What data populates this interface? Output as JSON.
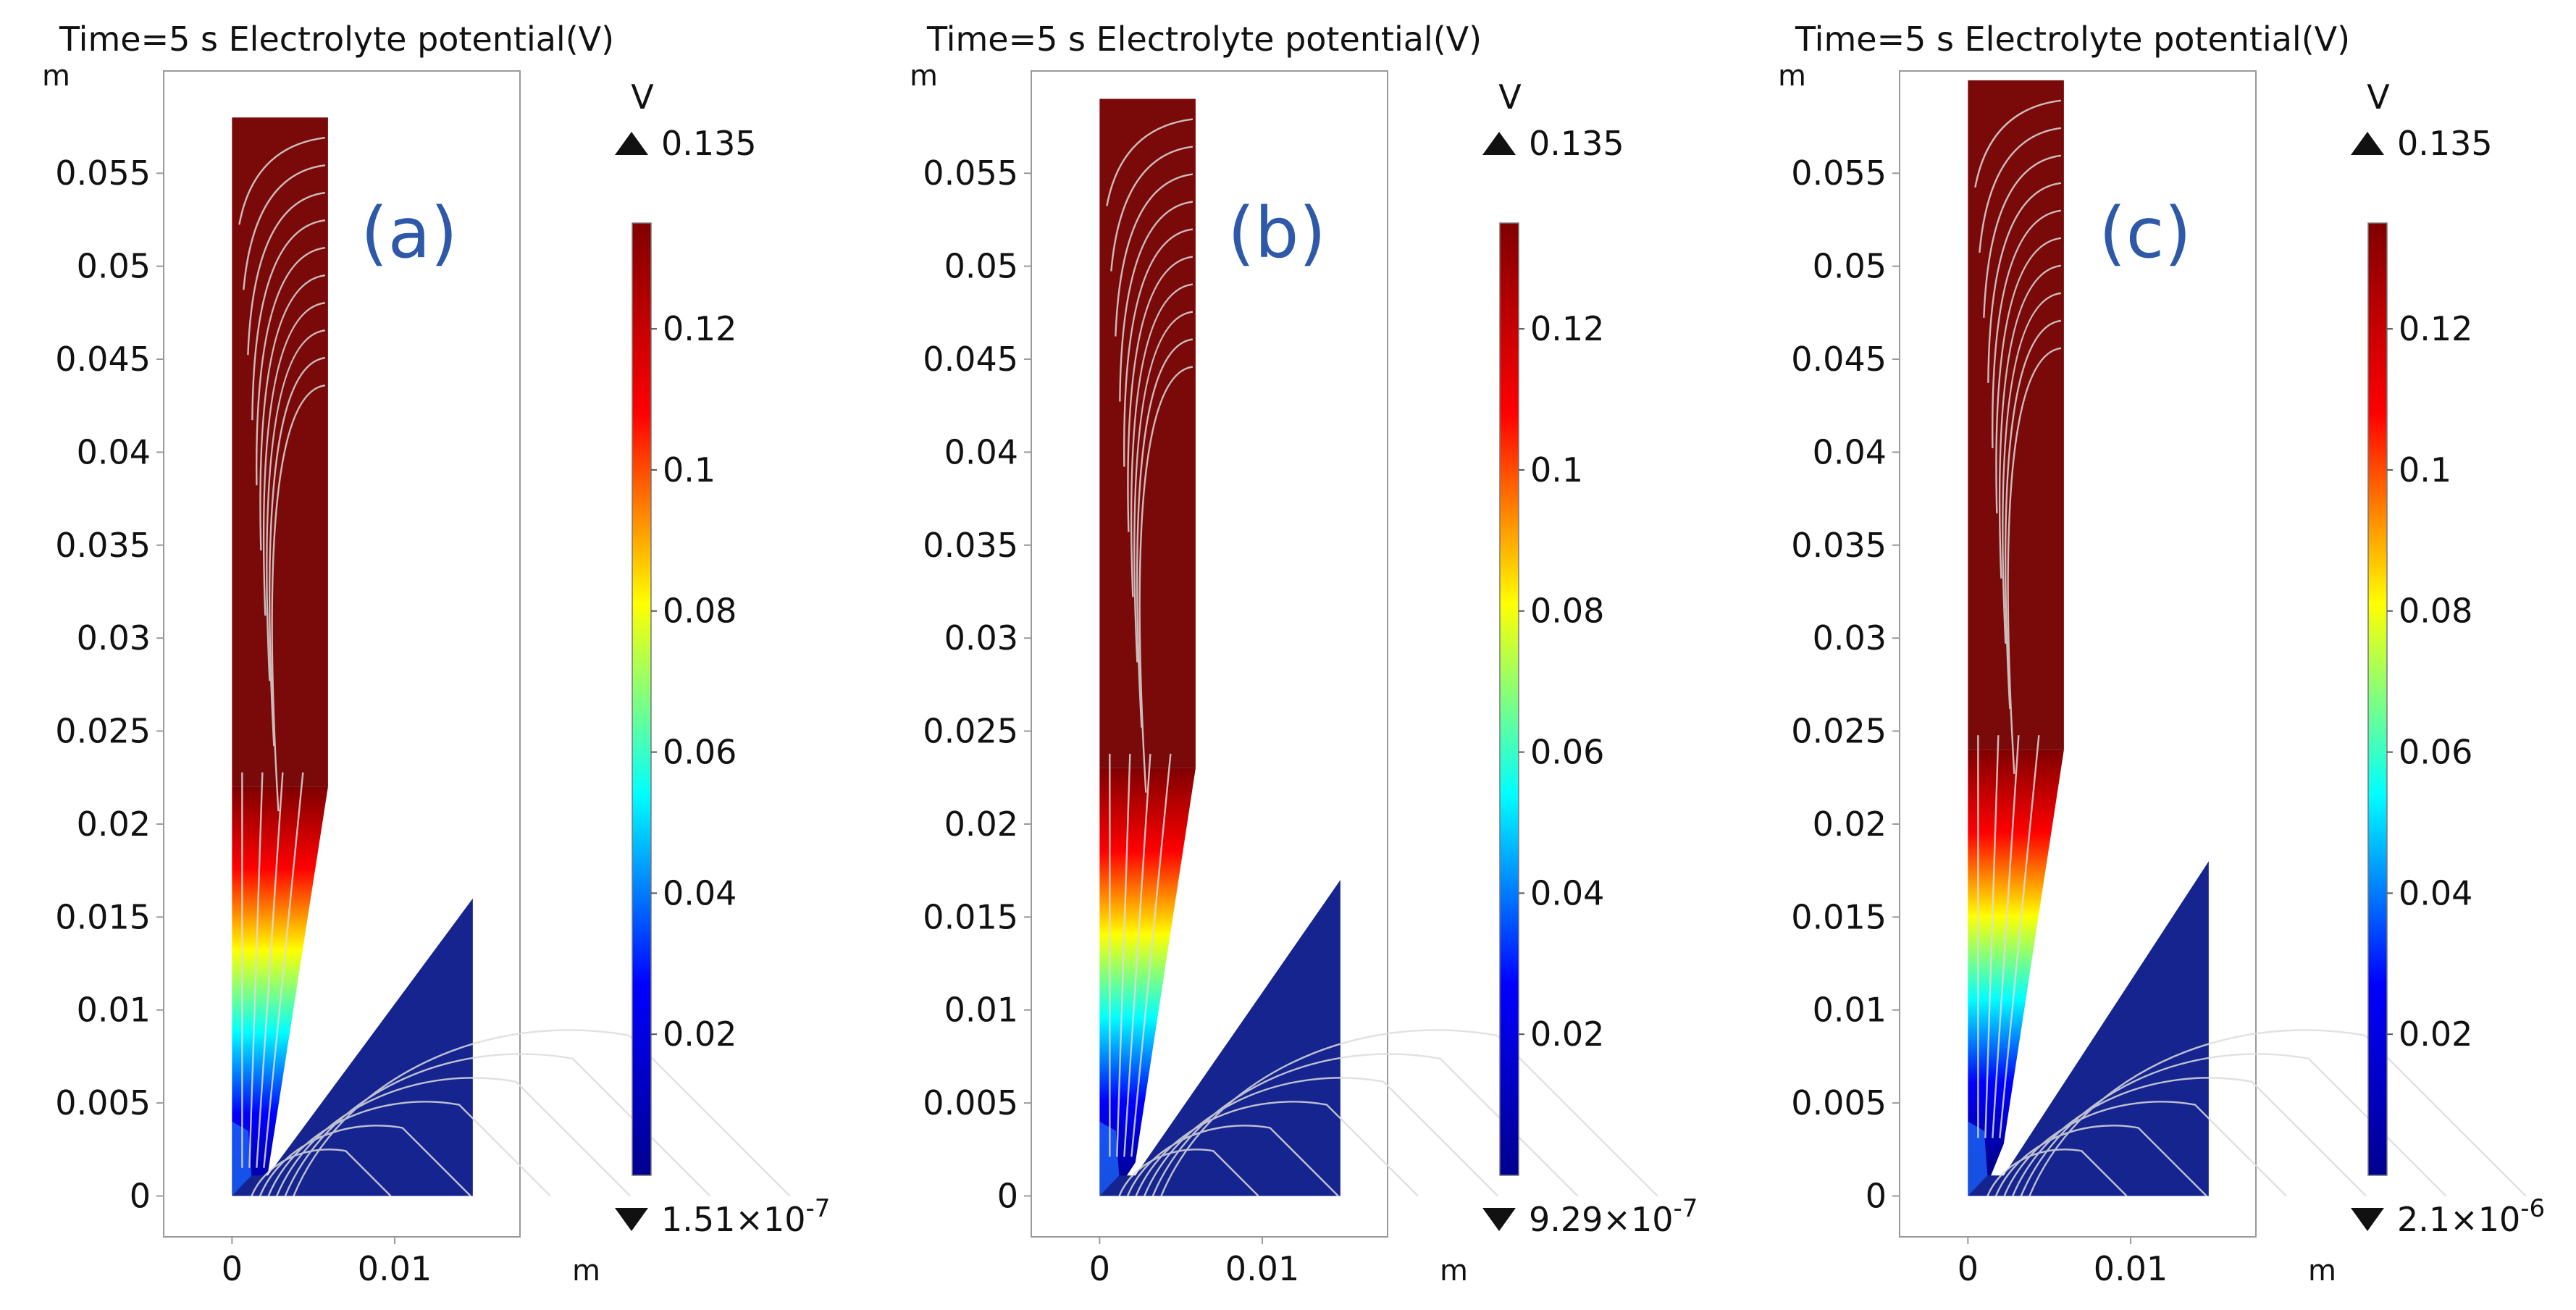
{
  "chart_data": [
    {
      "type": "heatmap",
      "panel_label": "(a)",
      "title": "Time=5 s Electrolyte potential(V)",
      "x_unit": "m",
      "y_unit": "m",
      "x_ticks": [
        0,
        0.01
      ],
      "x_tick_labels": [
        "0",
        "0.01"
      ],
      "y_ticks": [
        0,
        0.005,
        0.01,
        0.015,
        0.02,
        0.025,
        0.03,
        0.035,
        0.04,
        0.045,
        0.05,
        0.055
      ],
      "y_tick_labels": [
        "0",
        "0.005",
        "0.01",
        "0.015",
        "0.02",
        "0.025",
        "0.03",
        "0.035",
        "0.04",
        "0.045",
        "0.05",
        "0.055"
      ],
      "xlim": [
        -0.0042,
        0.0177
      ],
      "ylim": [
        -0.0022,
        0.0605
      ],
      "colorbar": {
        "unit": "V",
        "range": [
          0,
          0.135
        ],
        "tick_values": [
          0.02,
          0.04,
          0.06,
          0.08,
          0.1,
          0.12
        ],
        "tick_labels": [
          "0.02",
          "0.04",
          "0.06",
          "0.08",
          "0.1",
          "0.12"
        ],
        "max_label": "0.135",
        "min_label_mantissa": "1.51×10",
        "min_label_exponent": "-7"
      },
      "geometry": {
        "anode_top": 0.058,
        "anode_right": 0.0059,
        "neck_y": 0.022,
        "tip_x": 0.0022,
        "tip_y": 0.0012,
        "cathode_right": 0.0148,
        "cathode_top": 0.016
      }
    },
    {
      "type": "heatmap",
      "panel_label": "(b)",
      "title": "Time=5 s Electrolyte potential(V)",
      "x_unit": "m",
      "y_unit": "m",
      "x_ticks": [
        0,
        0.01
      ],
      "x_tick_labels": [
        "0",
        "0.01"
      ],
      "y_ticks": [
        0,
        0.005,
        0.01,
        0.015,
        0.02,
        0.025,
        0.03,
        0.035,
        0.04,
        0.045,
        0.05,
        0.055
      ],
      "y_tick_labels": [
        "0",
        "0.005",
        "0.01",
        "0.015",
        "0.02",
        "0.025",
        "0.03",
        "0.035",
        "0.04",
        "0.045",
        "0.05",
        "0.055"
      ],
      "xlim": [
        -0.0042,
        0.0177
      ],
      "ylim": [
        -0.0022,
        0.0605
      ],
      "colorbar": {
        "unit": "V",
        "range": [
          0,
          0.135
        ],
        "tick_values": [
          0.02,
          0.04,
          0.06,
          0.08,
          0.1,
          0.12
        ],
        "tick_labels": [
          "0.02",
          "0.04",
          "0.06",
          "0.08",
          "0.1",
          "0.12"
        ],
        "max_label": "0.135",
        "min_label_mantissa": "9.29×10",
        "min_label_exponent": "-7"
      },
      "geometry": {
        "anode_top": 0.059,
        "anode_right": 0.0059,
        "neck_y": 0.023,
        "tip_x": 0.0022,
        "tip_y": 0.0018,
        "cathode_right": 0.0148,
        "cathode_top": 0.017
      }
    },
    {
      "type": "heatmap",
      "panel_label": "(c)",
      "title": "Time=5 s Electrolyte potential(V)",
      "x_unit": "m",
      "y_unit": "m",
      "x_ticks": [
        0,
        0.01
      ],
      "x_tick_labels": [
        "0",
        "0.01"
      ],
      "y_ticks": [
        0,
        0.005,
        0.01,
        0.015,
        0.02,
        0.025,
        0.03,
        0.035,
        0.04,
        0.045,
        0.05,
        0.055
      ],
      "y_tick_labels": [
        "0",
        "0.005",
        "0.01",
        "0.015",
        "0.02",
        "0.025",
        "0.03",
        "0.035",
        "0.04",
        "0.045",
        "0.05",
        "0.055"
      ],
      "xlim": [
        -0.0042,
        0.0177
      ],
      "ylim": [
        -0.0022,
        0.0605
      ],
      "colorbar": {
        "unit": "V",
        "range": [
          0,
          0.135
        ],
        "tick_values": [
          0.02,
          0.04,
          0.06,
          0.08,
          0.1,
          0.12
        ],
        "tick_labels": [
          "0.02",
          "0.04",
          "0.06",
          "0.08",
          "0.1",
          "0.12"
        ],
        "max_label": "0.135",
        "min_label_mantissa": "2.1×10",
        "min_label_exponent": "-6"
      },
      "geometry": {
        "anode_top": 0.06,
        "anode_right": 0.0059,
        "neck_y": 0.024,
        "tip_x": 0.0022,
        "tip_y": 0.0028,
        "cathode_right": 0.0148,
        "cathode_top": 0.018
      }
    }
  ],
  "colors": {
    "jet": [
      "#00008f",
      "#0000ff",
      "#00ffff",
      "#ffff00",
      "#ff0000",
      "#800000"
    ],
    "anode": "#7a0a0a",
    "cathode": "#15248f",
    "streamline": "#dcdcdc",
    "label": "#2e58a8"
  }
}
